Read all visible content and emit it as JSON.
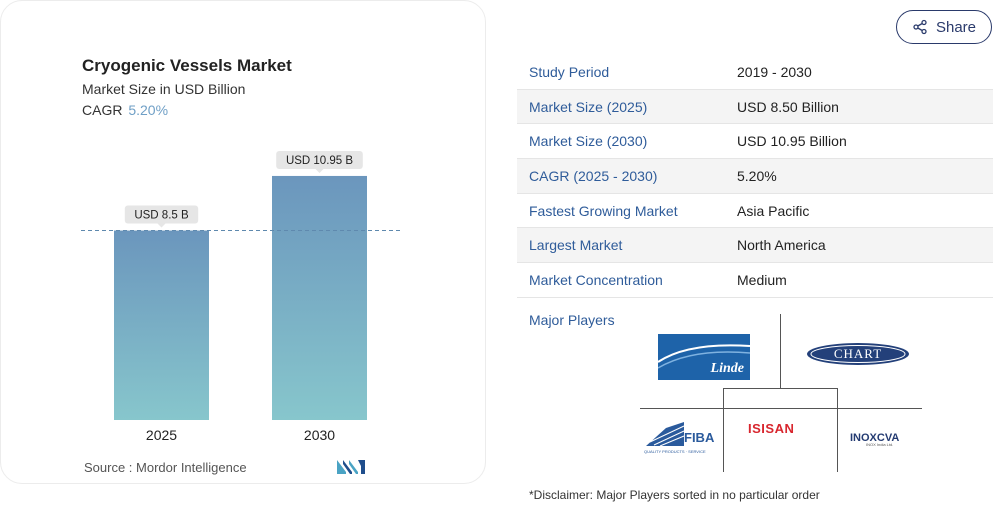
{
  "chart_data": {
    "type": "bar",
    "title": "Cryogenic Vessels Market",
    "subtitle": "Market Size in USD Billion",
    "cagr_label": "CAGR",
    "cagr_value": "5.20%",
    "categories": [
      "2025",
      "2030"
    ],
    "values": [
      8.5,
      10.95
    ],
    "data_labels": [
      "USD 8.5 B",
      "USD 10.95 B"
    ],
    "ylim": [
      0,
      11.8
    ],
    "gradient": [
      "#6b96bd",
      "#87c6cc"
    ],
    "source": "Source :  Mordor Intelligence"
  },
  "share": {
    "label": "Share",
    "icon": "share-icon"
  },
  "info": [
    {
      "key": "Study Period",
      "value": "2019 - 2030"
    },
    {
      "key": "Market Size (2025)",
      "value": "USD 8.50 Billion"
    },
    {
      "key": "Market Size (2030)",
      "value": "USD 10.95 Billion"
    },
    {
      "key": "CAGR (2025 - 2030)",
      "value": "5.20%"
    },
    {
      "key": "Fastest Growing Market",
      "value": "Asia Pacific"
    },
    {
      "key": "Largest Market",
      "value": "North America"
    },
    {
      "key": "Market Concentration",
      "value": "Medium"
    }
  ],
  "players": {
    "label": "Major Players",
    "logos": {
      "linde": "Linde",
      "chart": "CHART",
      "fiba": "FIBA",
      "fiba_sub": "QUALITY PRODUCTS · SERVICE",
      "isisan": "ISISAN",
      "inox": "INOXCVA",
      "inox_sub": "INOX India Ltd."
    }
  },
  "disclaimer": "*Disclaimer: Major Players sorted in no particular order"
}
